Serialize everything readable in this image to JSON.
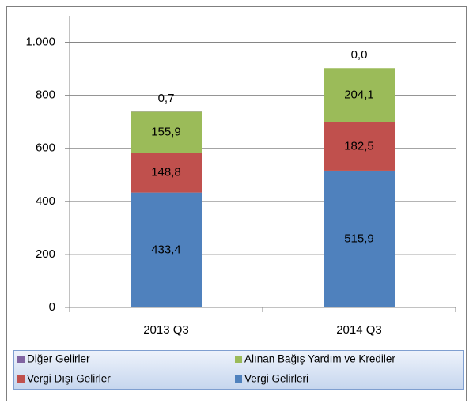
{
  "chart_data": {
    "type": "stacked_bar",
    "categories": [
      "2013 Q3",
      "2014 Q3"
    ],
    "series": [
      {
        "name": "Vergi Gelirleri",
        "color": "#4f81bd",
        "values": [
          433.4,
          515.9
        ],
        "value_labels": [
          "433,4",
          "515,9"
        ]
      },
      {
        "name": "Vergi Dışı Gelirler",
        "color": "#c0504d",
        "values": [
          148.8,
          182.5
        ],
        "value_labels": [
          "148,8",
          "182,5"
        ]
      },
      {
        "name": "Alınan Bağış Yardım ve Krediler",
        "color": "#9bbb59",
        "values": [
          155.9,
          204.1
        ],
        "value_labels": [
          "155,9",
          "204,1"
        ]
      },
      {
        "name": "Diğer Gelirler",
        "color": "#8064a2",
        "values": [
          0.7,
          0.0
        ],
        "value_labels": [
          "0,7",
          "0,0"
        ]
      }
    ],
    "ylim": [
      0,
      1100
    ],
    "yticks": [
      0,
      200,
      400,
      600,
      800,
      {
        "value": 1000,
        "label": "1.000"
      }
    ],
    "grid": true
  }
}
